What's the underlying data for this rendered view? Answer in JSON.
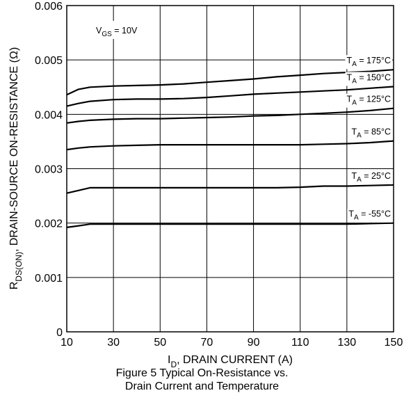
{
  "chart_data": {
    "type": "line",
    "xlabel": "I_D, DRAIN CURRENT (A)",
    "ylabel": "R_DS(ON), DRAIN-SOURCE ON-RESISTANCE (Ω)",
    "xlim": [
      10,
      150
    ],
    "ylim": [
      0,
      0.006
    ],
    "xticks": [
      "10",
      "30",
      "50",
      "70",
      "90",
      "110",
      "130",
      "150"
    ],
    "yticks": [
      "0",
      "0.001",
      "0.002",
      "0.003",
      "0.004",
      "0.005",
      "0.006"
    ],
    "grid": true,
    "condition": "V_GS = 10V",
    "x": [
      10,
      15,
      20,
      30,
      40,
      50,
      60,
      70,
      80,
      90,
      100,
      110,
      120,
      130,
      140,
      150
    ],
    "series": [
      {
        "name": "T_A = 175°C",
        "values": [
          0.00436,
          0.00446,
          0.0045,
          0.00452,
          0.00453,
          0.00454,
          0.00456,
          0.00459,
          0.00462,
          0.00465,
          0.00469,
          0.00472,
          0.00475,
          0.00477,
          0.00479,
          0.00482
        ]
      },
      {
        "name": "T_A = 150°C",
        "values": [
          0.00415,
          0.0042,
          0.00424,
          0.00427,
          0.00428,
          0.00428,
          0.00429,
          0.00431,
          0.00434,
          0.00437,
          0.00439,
          0.00441,
          0.00443,
          0.00445,
          0.00448,
          0.00451
        ]
      },
      {
        "name": "T_A = 125°C",
        "values": [
          0.00384,
          0.00387,
          0.00389,
          0.00391,
          0.00392,
          0.00392,
          0.00393,
          0.00394,
          0.00395,
          0.00397,
          0.00398,
          0.004,
          0.00402,
          0.00404,
          0.00407,
          0.00411
        ]
      },
      {
        "name": "T_A = 85°C",
        "values": [
          0.00335,
          0.00338,
          0.0034,
          0.00342,
          0.00343,
          0.00344,
          0.00344,
          0.00344,
          0.00344,
          0.00344,
          0.00344,
          0.00344,
          0.00345,
          0.00346,
          0.00348,
          0.00351
        ]
      },
      {
        "name": "T_A = 25°C",
        "values": [
          0.00255,
          0.0026,
          0.00265,
          0.00265,
          0.00265,
          0.00265,
          0.00265,
          0.00265,
          0.00265,
          0.00265,
          0.00265,
          0.00266,
          0.00268,
          0.00268,
          0.00269,
          0.0027
        ]
      },
      {
        "name": "T_A = -55°C",
        "values": [
          0.00192,
          0.00195,
          0.00198,
          0.00198,
          0.00198,
          0.00198,
          0.00198,
          0.00198,
          0.00198,
          0.00198,
          0.00198,
          0.00198,
          0.00198,
          0.00198,
          0.00199,
          0.002
        ]
      }
    ]
  },
  "caption": {
    "line1": "Figure 5 Typical On-Resistance vs.",
    "line2": "Drain Current and Temperature"
  }
}
